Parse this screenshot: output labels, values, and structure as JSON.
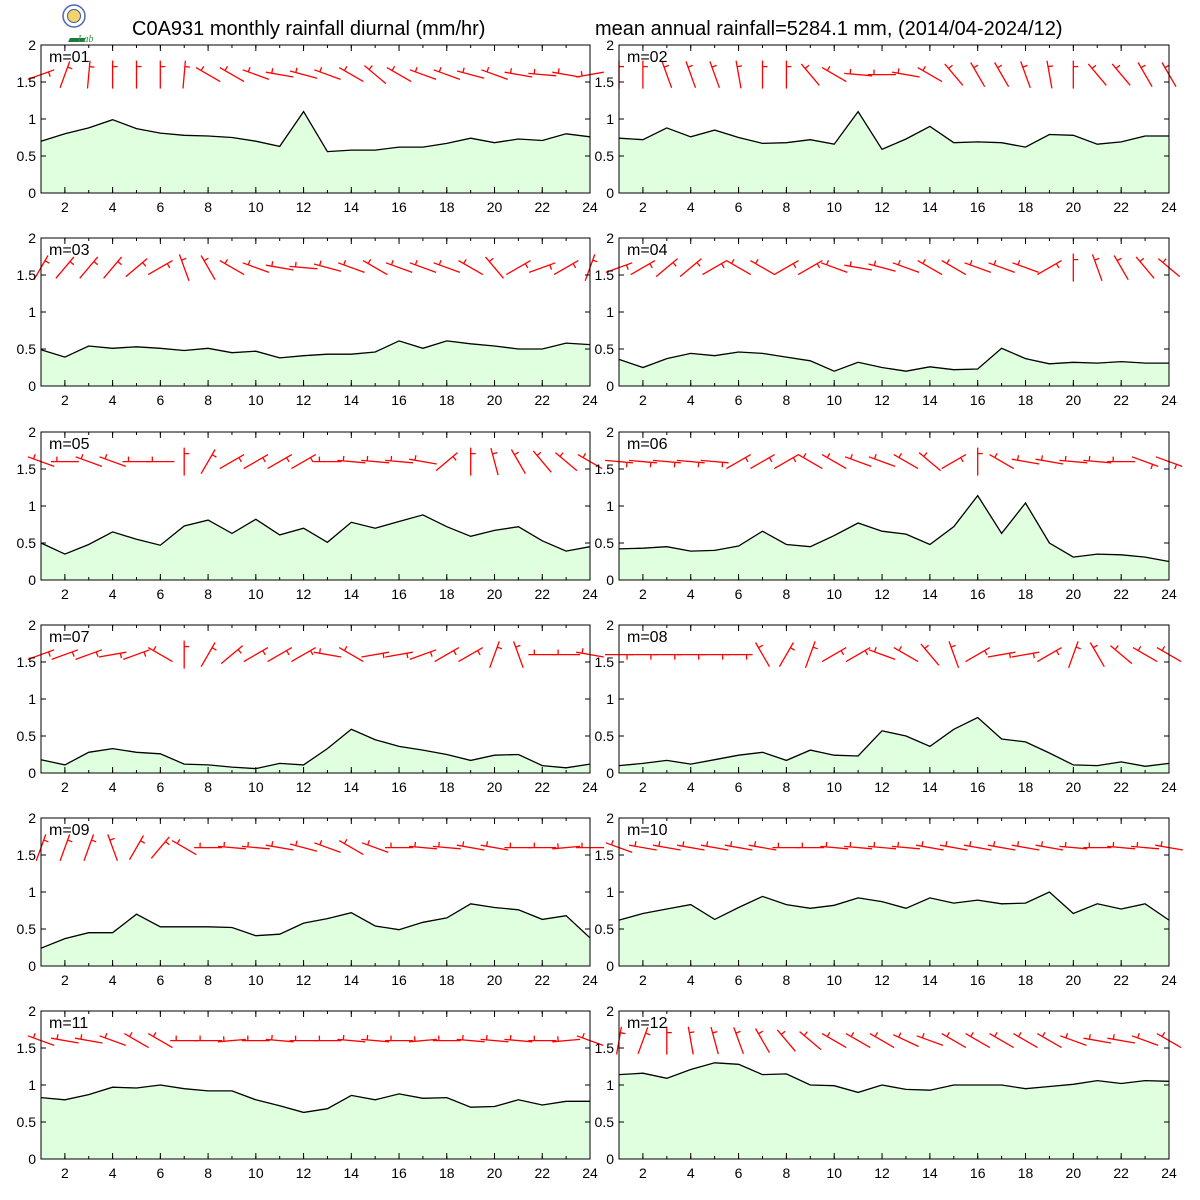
{
  "header": {
    "title_left": "C0A931 monthly rainfall diurnal (mm/hr)",
    "title_right": "mean annual rainfall=5284.1 mm, (2014/04-2024/12)",
    "logo_text": "Lab"
  },
  "colors": {
    "fill": "#dfffdf",
    "line": "#000000",
    "wind": "#ff0000",
    "frame": "#000000"
  },
  "chart_data": [
    {
      "type": "area",
      "label": "m=01",
      "x": [
        1,
        2,
        3,
        4,
        5,
        6,
        7,
        8,
        9,
        10,
        11,
        12,
        13,
        14,
        15,
        16,
        17,
        18,
        19,
        20,
        21,
        22,
        23,
        24
      ],
      "values": [
        0.7,
        0.8,
        0.88,
        0.99,
        0.87,
        0.81,
        0.78,
        0.77,
        0.75,
        0.7,
        0.63,
        1.1,
        0.56,
        0.58,
        0.58,
        0.62,
        0.62,
        0.67,
        0.74,
        0.68,
        0.73,
        0.71,
        0.8,
        0.76
      ],
      "wind_dir": [
        70,
        20,
        5,
        0,
        0,
        0,
        5,
        300,
        300,
        290,
        280,
        285,
        290,
        300,
        310,
        300,
        290,
        290,
        285,
        290,
        280,
        275,
        280,
        260
      ],
      "ylim": [
        0,
        2
      ],
      "xlim": [
        1,
        24
      ],
      "xticks": [
        2,
        4,
        6,
        8,
        10,
        12,
        14,
        16,
        18,
        20,
        22,
        24
      ],
      "yticks": [
        0,
        0.5,
        1,
        1.5,
        2
      ]
    },
    {
      "type": "area",
      "label": "m=02",
      "x": [
        1,
        2,
        3,
        4,
        5,
        6,
        7,
        8,
        9,
        10,
        11,
        12,
        13,
        14,
        15,
        16,
        17,
        18,
        19,
        20,
        21,
        22,
        23,
        24
      ],
      "values": [
        0.74,
        0.72,
        0.88,
        0.76,
        0.85,
        0.75,
        0.67,
        0.68,
        0.72,
        0.66,
        1.1,
        0.59,
        0.73,
        0.9,
        0.68,
        0.69,
        0.68,
        0.62,
        0.79,
        0.78,
        0.66,
        0.69,
        0.77,
        0.77
      ],
      "wind_dir": [
        0,
        0,
        340,
        340,
        340,
        350,
        0,
        0,
        320,
        300,
        275,
        270,
        280,
        300,
        320,
        330,
        330,
        340,
        350,
        0,
        320,
        320,
        330,
        330
      ],
      "ylim": [
        0,
        2
      ],
      "xlim": [
        1,
        24
      ],
      "xticks": [
        2,
        4,
        6,
        8,
        10,
        12,
        14,
        16,
        18,
        20,
        22,
        24
      ],
      "yticks": [
        0,
        0.5,
        1,
        1.5,
        2
      ]
    },
    {
      "type": "area",
      "label": "m=03",
      "x": [
        1,
        2,
        3,
        4,
        5,
        6,
        7,
        8,
        9,
        10,
        11,
        12,
        13,
        14,
        15,
        16,
        17,
        18,
        19,
        20,
        21,
        22,
        23,
        24
      ],
      "values": [
        0.49,
        0.39,
        0.54,
        0.51,
        0.53,
        0.51,
        0.48,
        0.51,
        0.45,
        0.47,
        0.38,
        0.41,
        0.43,
        0.43,
        0.46,
        0.61,
        0.51,
        0.61,
        0.57,
        0.54,
        0.5,
        0.5,
        0.58,
        0.56
      ],
      "wind_dir": [
        30,
        40,
        40,
        40,
        50,
        60,
        340,
        330,
        300,
        290,
        280,
        275,
        285,
        290,
        300,
        290,
        290,
        290,
        300,
        320,
        60,
        70,
        60,
        20
      ],
      "ylim": [
        0,
        2
      ],
      "xlim": [
        1,
        24
      ],
      "xticks": [
        2,
        4,
        6,
        8,
        10,
        12,
        14,
        16,
        18,
        20,
        22,
        24
      ],
      "yticks": [
        0,
        0.5,
        1,
        1.5,
        2
      ]
    },
    {
      "type": "area",
      "label": "m=04",
      "x": [
        1,
        2,
        3,
        4,
        5,
        6,
        7,
        8,
        9,
        10,
        11,
        12,
        13,
        14,
        15,
        16,
        17,
        18,
        19,
        20,
        21,
        22,
        23,
        24
      ],
      "values": [
        0.36,
        0.25,
        0.37,
        0.44,
        0.41,
        0.46,
        0.44,
        0.39,
        0.34,
        0.2,
        0.32,
        0.25,
        0.2,
        0.26,
        0.22,
        0.23,
        0.51,
        0.37,
        0.3,
        0.32,
        0.31,
        0.33,
        0.31,
        0.31
      ],
      "wind_dir": [
        70,
        60,
        50,
        50,
        60,
        300,
        300,
        60,
        60,
        290,
        280,
        285,
        290,
        300,
        300,
        290,
        290,
        290,
        60,
        0,
        340,
        330,
        320,
        310
      ],
      "ylim": [
        0,
        2
      ],
      "xlim": [
        1,
        24
      ],
      "xticks": [
        2,
        4,
        6,
        8,
        10,
        12,
        14,
        16,
        18,
        20,
        22,
        24
      ],
      "yticks": [
        0,
        0.5,
        1,
        1.5,
        2
      ]
    },
    {
      "type": "area",
      "label": "m=05",
      "x": [
        1,
        2,
        3,
        4,
        5,
        6,
        7,
        8,
        9,
        10,
        11,
        12,
        13,
        14,
        15,
        16,
        17,
        18,
        19,
        20,
        21,
        22,
        23,
        24
      ],
      "values": [
        0.5,
        0.35,
        0.48,
        0.65,
        0.55,
        0.47,
        0.73,
        0.81,
        0.63,
        0.82,
        0.61,
        0.7,
        0.51,
        0.78,
        0.7,
        0.79,
        0.88,
        0.72,
        0.59,
        0.67,
        0.72,
        0.53,
        0.39,
        0.45
      ],
      "wind_dir": [
        290,
        270,
        290,
        290,
        270,
        270,
        0,
        30,
        60,
        60,
        60,
        60,
        270,
        275,
        275,
        275,
        280,
        50,
        0,
        345,
        330,
        320,
        310,
        300
      ],
      "ylim": [
        0,
        2
      ],
      "xlim": [
        1,
        24
      ],
      "xticks": [
        2,
        4,
        6,
        8,
        10,
        12,
        14,
        16,
        18,
        20,
        22,
        24
      ],
      "yticks": [
        0,
        0.5,
        1,
        1.5,
        2
      ]
    },
    {
      "type": "area",
      "label": "m=06",
      "x": [
        1,
        2,
        3,
        4,
        5,
        6,
        7,
        8,
        9,
        10,
        11,
        12,
        13,
        14,
        15,
        16,
        17,
        18,
        19,
        20,
        21,
        22,
        23,
        24
      ],
      "values": [
        0.42,
        0.43,
        0.45,
        0.39,
        0.4,
        0.46,
        0.66,
        0.48,
        0.45,
        0.6,
        0.77,
        0.66,
        0.62,
        0.48,
        0.72,
        1.14,
        0.63,
        1.04,
        0.5,
        0.31,
        0.35,
        0.34,
        0.31,
        0.25
      ],
      "wind_dir": [
        95,
        95,
        95,
        95,
        95,
        60,
        60,
        60,
        300,
        300,
        290,
        290,
        300,
        310,
        60,
        0,
        300,
        280,
        280,
        275,
        275,
        270,
        110,
        110
      ],
      "ylim": [
        0,
        2
      ],
      "xlim": [
        1,
        24
      ],
      "xticks": [
        2,
        4,
        6,
        8,
        10,
        12,
        14,
        16,
        18,
        20,
        22,
        24
      ],
      "yticks": [
        0,
        0.5,
        1,
        1.5,
        2
      ]
    },
    {
      "type": "area",
      "label": "m=07",
      "x": [
        1,
        2,
        3,
        4,
        5,
        6,
        7,
        8,
        9,
        10,
        11,
        12,
        13,
        14,
        15,
        16,
        17,
        18,
        19,
        20,
        21,
        22,
        23,
        24
      ],
      "values": [
        0.18,
        0.11,
        0.28,
        0.33,
        0.28,
        0.26,
        0.12,
        0.11,
        0.08,
        0.06,
        0.13,
        0.11,
        0.33,
        0.59,
        0.45,
        0.36,
        0.31,
        0.25,
        0.17,
        0.24,
        0.25,
        0.1,
        0.07,
        0.12
      ],
      "wind_dir": [
        70,
        70,
        70,
        80,
        70,
        300,
        0,
        30,
        50,
        60,
        60,
        60,
        280,
        300,
        80,
        80,
        70,
        60,
        60,
        20,
        340,
        270,
        270,
        280
      ],
      "ylim": [
        0,
        2
      ],
      "xlim": [
        1,
        24
      ],
      "xticks": [
        2,
        4,
        6,
        8,
        10,
        12,
        14,
        16,
        18,
        20,
        22,
        24
      ],
      "yticks": [
        0,
        0.5,
        1,
        1.5,
        2
      ]
    },
    {
      "type": "area",
      "label": "m=08",
      "x": [
        1,
        2,
        3,
        4,
        5,
        6,
        7,
        8,
        9,
        10,
        11,
        12,
        13,
        14,
        15,
        16,
        17,
        18,
        19,
        20,
        21,
        22,
        23,
        24
      ],
      "values": [
        0.1,
        0.13,
        0.17,
        0.12,
        0.18,
        0.24,
        0.28,
        0.17,
        0.31,
        0.24,
        0.23,
        0.57,
        0.5,
        0.36,
        0.59,
        0.75,
        0.46,
        0.42,
        0.27,
        0.11,
        0.1,
        0.15,
        0.09,
        0.13
      ],
      "wind_dir": [
        90,
        90,
        90,
        90,
        90,
        90,
        330,
        30,
        20,
        60,
        60,
        290,
        300,
        320,
        340,
        60,
        80,
        80,
        60,
        20,
        330,
        310,
        300,
        300
      ],
      "ylim": [
        0,
        2
      ],
      "xlim": [
        1,
        24
      ],
      "xticks": [
        2,
        4,
        6,
        8,
        10,
        12,
        14,
        16,
        18,
        20,
        22,
        24
      ],
      "yticks": [
        0,
        0.5,
        1,
        1.5,
        2
      ]
    },
    {
      "type": "area",
      "label": "m=09",
      "x": [
        1,
        2,
        3,
        4,
        5,
        6,
        7,
        8,
        9,
        10,
        11,
        12,
        13,
        14,
        15,
        16,
        17,
        18,
        19,
        20,
        21,
        22,
        23,
        24
      ],
      "values": [
        0.24,
        0.37,
        0.45,
        0.45,
        0.7,
        0.53,
        0.53,
        0.53,
        0.52,
        0.41,
        0.43,
        0.58,
        0.64,
        0.72,
        0.54,
        0.49,
        0.59,
        0.65,
        0.84,
        0.79,
        0.76,
        0.63,
        0.68,
        0.38
      ],
      "wind_dir": [
        20,
        20,
        20,
        340,
        30,
        40,
        300,
        270,
        275,
        275,
        280,
        285,
        290,
        300,
        290,
        270,
        275,
        275,
        280,
        280,
        270,
        270,
        265,
        270
      ],
      "ylim": [
        0,
        2
      ],
      "xlim": [
        1,
        24
      ],
      "xticks": [
        2,
        4,
        6,
        8,
        10,
        12,
        14,
        16,
        18,
        20,
        22,
        24
      ],
      "yticks": [
        0,
        0.5,
        1,
        1.5,
        2
      ]
    },
    {
      "type": "area",
      "label": "m=10",
      "x": [
        1,
        2,
        3,
        4,
        5,
        6,
        7,
        8,
        9,
        10,
        11,
        12,
        13,
        14,
        15,
        16,
        17,
        18,
        19,
        20,
        21,
        22,
        23,
        24
      ],
      "values": [
        0.62,
        0.71,
        0.77,
        0.83,
        0.63,
        0.79,
        0.94,
        0.83,
        0.78,
        0.82,
        0.92,
        0.87,
        0.78,
        0.92,
        0.85,
        0.89,
        0.84,
        0.85,
        1.0,
        0.71,
        0.84,
        0.77,
        0.84,
        0.62
      ],
      "wind_dir": [
        290,
        280,
        280,
        280,
        280,
        280,
        280,
        270,
        270,
        275,
        275,
        275,
        275,
        280,
        280,
        280,
        280,
        280,
        280,
        275,
        270,
        275,
        275,
        280
      ],
      "ylim": [
        0,
        2
      ],
      "xlim": [
        1,
        24
      ],
      "xticks": [
        2,
        4,
        6,
        8,
        10,
        12,
        14,
        16,
        18,
        20,
        22,
        24
      ],
      "yticks": [
        0,
        0.5,
        1,
        1.5,
        2
      ]
    },
    {
      "type": "area",
      "label": "m=11",
      "x": [
        1,
        2,
        3,
        4,
        5,
        6,
        7,
        8,
        9,
        10,
        11,
        12,
        13,
        14,
        15,
        16,
        17,
        18,
        19,
        20,
        21,
        22,
        23,
        24
      ],
      "values": [
        0.83,
        0.8,
        0.87,
        0.97,
        0.96,
        1.0,
        0.95,
        0.92,
        0.92,
        0.8,
        0.72,
        0.63,
        0.68,
        0.86,
        0.8,
        0.88,
        0.82,
        0.83,
        0.7,
        0.71,
        0.8,
        0.73,
        0.78,
        0.78
      ],
      "wind_dir": [
        290,
        280,
        280,
        290,
        300,
        300,
        270,
        270,
        265,
        270,
        275,
        270,
        270,
        275,
        275,
        270,
        265,
        270,
        275,
        275,
        275,
        270,
        265,
        290
      ],
      "ylim": [
        0,
        2
      ],
      "xlim": [
        1,
        24
      ],
      "xticks": [
        2,
        4,
        6,
        8,
        10,
        12,
        14,
        16,
        18,
        20,
        22,
        24
      ],
      "yticks": [
        0,
        0.5,
        1,
        1.5,
        2
      ]
    },
    {
      "type": "area",
      "label": "m=12",
      "x": [
        1,
        2,
        3,
        4,
        5,
        6,
        7,
        8,
        9,
        10,
        11,
        12,
        13,
        14,
        15,
        16,
        17,
        18,
        19,
        20,
        21,
        22,
        23,
        24
      ],
      "values": [
        1.14,
        1.16,
        1.09,
        1.21,
        1.3,
        1.28,
        1.14,
        1.15,
        1.0,
        0.99,
        0.9,
        1.0,
        0.94,
        0.93,
        1.0,
        1.0,
        1.0,
        0.95,
        0.98,
        1.01,
        1.06,
        1.02,
        1.06,
        1.05
      ],
      "wind_dir": [
        10,
        20,
        0,
        350,
        345,
        340,
        330,
        320,
        310,
        300,
        300,
        300,
        295,
        290,
        300,
        300,
        300,
        300,
        300,
        290,
        280,
        280,
        290,
        300
      ],
      "ylim": [
        0,
        2
      ],
      "xlim": [
        1,
        24
      ],
      "xticks": [
        2,
        4,
        6,
        8,
        10,
        12,
        14,
        16,
        18,
        20,
        22,
        24
      ],
      "yticks": [
        0,
        0.5,
        1,
        1.5,
        2
      ]
    }
  ]
}
